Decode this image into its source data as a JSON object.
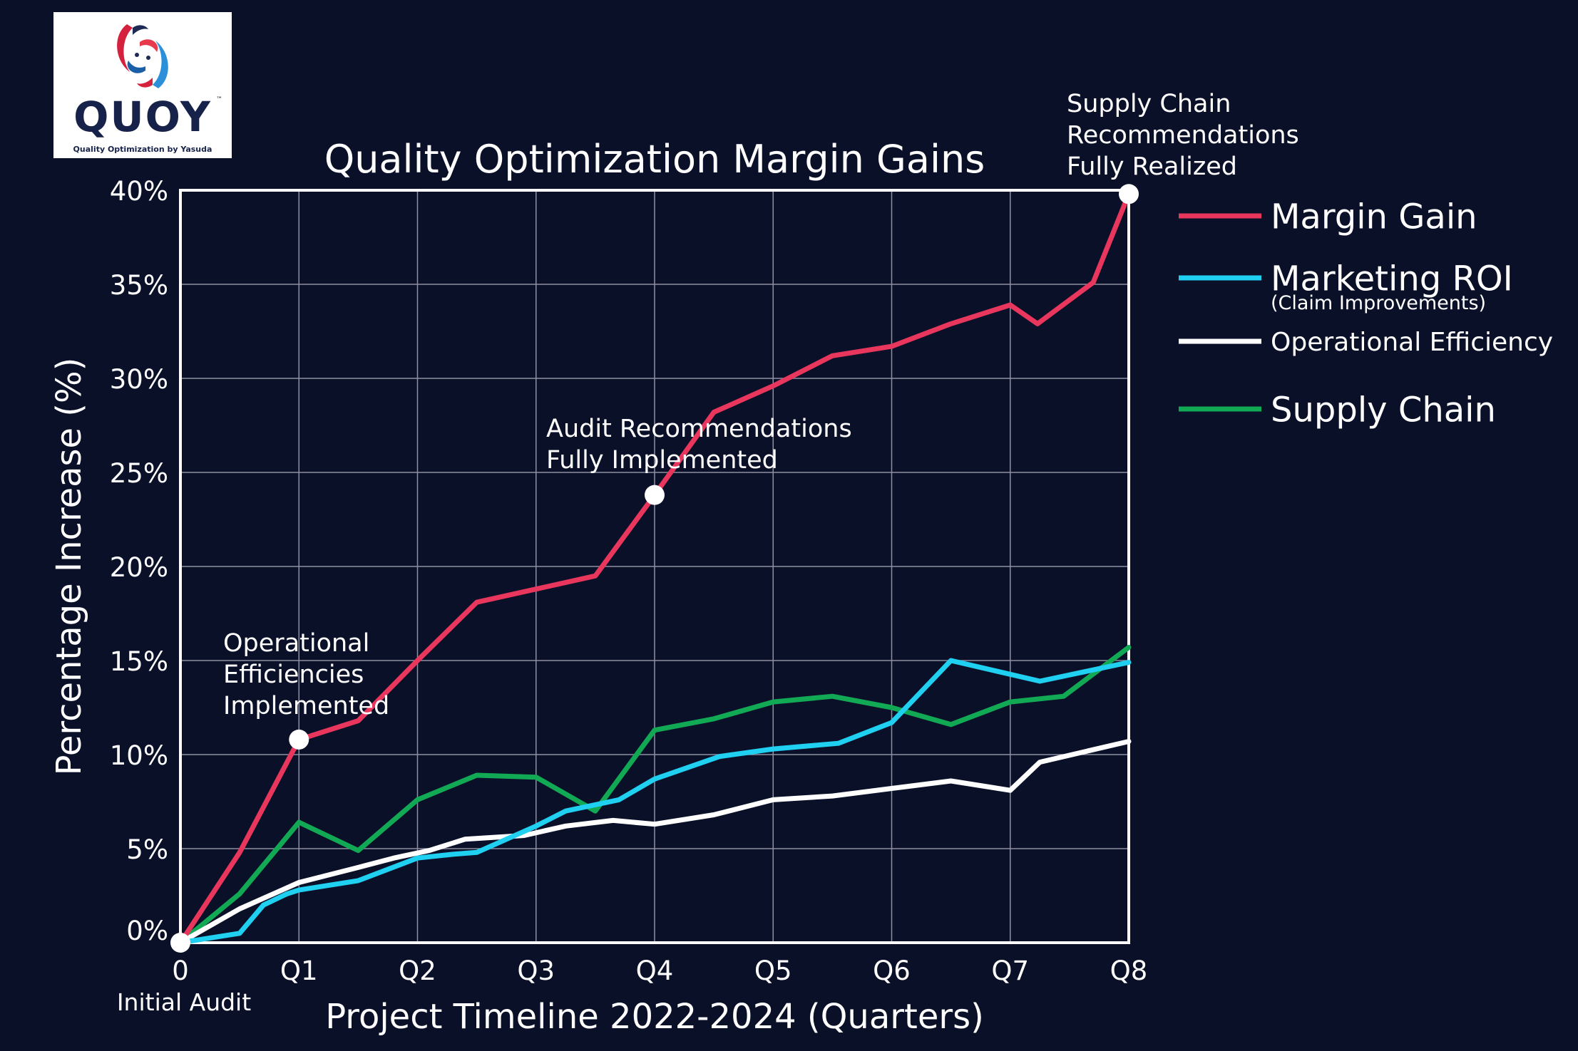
{
  "logo": {
    "wordmark": "QUOY",
    "tagline": "Quality Optimization by Yasuda",
    "trademark": "™"
  },
  "chart_data": {
    "type": "line",
    "title": "Quality Optimization Margin Gains",
    "xlabel": "Project Timeline 2022-2024 (Quarters)",
    "ylabel": "Percentage Increase (%)",
    "xlim": [
      0,
      8
    ],
    "ylim": [
      0,
      40
    ],
    "grid": true,
    "legend_position": "right",
    "x_ticks": [
      {
        "x": 0,
        "label": "0"
      },
      {
        "x": 1,
        "label": "Q1"
      },
      {
        "x": 2,
        "label": "Q2"
      },
      {
        "x": 3,
        "label": "Q3"
      },
      {
        "x": 4,
        "label": "Q4"
      },
      {
        "x": 5,
        "label": "Q5"
      },
      {
        "x": 6,
        "label": "Q6"
      },
      {
        "x": 7,
        "label": "Q7"
      },
      {
        "x": 8,
        "label": "Q8"
      }
    ],
    "x_sublabel": "Initial Audit",
    "y_ticks": [
      {
        "y": 0,
        "label": "0%"
      },
      {
        "y": 5,
        "label": "5%"
      },
      {
        "y": 10,
        "label": "10%"
      },
      {
        "y": 15,
        "label": "15%"
      },
      {
        "y": 20,
        "label": "20%"
      },
      {
        "y": 25,
        "label": "25%"
      },
      {
        "y": 30,
        "label": "30%"
      },
      {
        "y": 35,
        "label": "35%"
      },
      {
        "y": 40,
        "label": "40%"
      }
    ],
    "series": [
      {
        "name": "Margin Gain",
        "color": "#e8365d",
        "points": [
          [
            0,
            0
          ],
          [
            0.5,
            4.8
          ],
          [
            1,
            10.8
          ],
          [
            1.5,
            11.8
          ],
          [
            2,
            15
          ],
          [
            2.5,
            18.1
          ],
          [
            3,
            18.8
          ],
          [
            3.5,
            19.5
          ],
          [
            4,
            23.8
          ],
          [
            4.5,
            28.2
          ],
          [
            5,
            29.6
          ],
          [
            5.5,
            31.2
          ],
          [
            6,
            31.7
          ],
          [
            6.5,
            32.9
          ],
          [
            7,
            33.9
          ],
          [
            7.23,
            32.9
          ],
          [
            7.7,
            35.1
          ],
          [
            8,
            39.8
          ]
        ]
      },
      {
        "name": "Marketing ROI",
        "sublabel": "(Claim Improvements)",
        "color": "#1fd0f1",
        "points": [
          [
            0,
            0
          ],
          [
            0.5,
            0.5
          ],
          [
            0.7,
            2
          ],
          [
            0.9,
            2.6
          ],
          [
            1,
            2.8
          ],
          [
            1.5,
            3.3
          ],
          [
            2,
            4.5
          ],
          [
            2.3,
            4.7
          ],
          [
            2.5,
            4.8
          ],
          [
            3,
            6.2
          ],
          [
            3.25,
            7
          ],
          [
            3.7,
            7.6
          ],
          [
            4,
            8.7
          ],
          [
            4.55,
            9.9
          ],
          [
            5,
            10.3
          ],
          [
            5.55,
            10.6
          ],
          [
            6,
            11.7
          ],
          [
            6.5,
            15
          ],
          [
            7.25,
            13.9
          ],
          [
            8,
            14.9
          ]
        ]
      },
      {
        "name": "Operational Efficiency",
        "color": "#ffffff",
        "points": [
          [
            0,
            0
          ],
          [
            0.5,
            1.8
          ],
          [
            1,
            3.2
          ],
          [
            1.5,
            4
          ],
          [
            1.8,
            4.5
          ],
          [
            2.1,
            4.9
          ],
          [
            2.4,
            5.5
          ],
          [
            2.9,
            5.7
          ],
          [
            3.25,
            6.2
          ],
          [
            3.65,
            6.5
          ],
          [
            4,
            6.3
          ],
          [
            4.5,
            6.8
          ],
          [
            5,
            7.6
          ],
          [
            5.5,
            7.8
          ],
          [
            6,
            8.2
          ],
          [
            6.5,
            8.6
          ],
          [
            7,
            8.1
          ],
          [
            7.25,
            9.6
          ],
          [
            8,
            10.7
          ]
        ]
      },
      {
        "name": "Supply Chain",
        "color": "#12a955",
        "points": [
          [
            0,
            0
          ],
          [
            0.5,
            2.6
          ],
          [
            1,
            6.4
          ],
          [
            1.5,
            4.9
          ],
          [
            2,
            7.6
          ],
          [
            2.5,
            8.9
          ],
          [
            3,
            8.8
          ],
          [
            3.5,
            7
          ],
          [
            4,
            11.3
          ],
          [
            4.5,
            11.9
          ],
          [
            5,
            12.8
          ],
          [
            5.5,
            13.1
          ],
          [
            6,
            12.5
          ],
          [
            6.5,
            11.6
          ],
          [
            7,
            12.8
          ],
          [
            7.45,
            13.1
          ],
          [
            8,
            15.7
          ]
        ]
      }
    ],
    "annotations": [
      {
        "x": 1,
        "y": 10.8,
        "text": [
          "Operational",
          "Efficiencies",
          "Implemented"
        ]
      },
      {
        "x": 4,
        "y": 23.8,
        "text": [
          "Audit Recommendations",
          "Fully Implemented"
        ]
      },
      {
        "x": 8,
        "y": 39.8,
        "text": [
          "Supply Chain",
          "Recommendations",
          "Fully Realized"
        ]
      }
    ],
    "origin_marker": {
      "x": 0,
      "y": 0
    }
  }
}
